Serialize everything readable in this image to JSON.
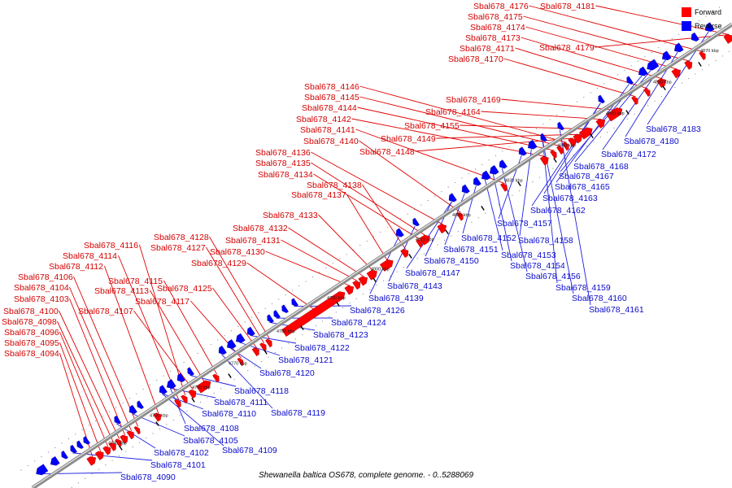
{
  "caption": "Shewanella baltica OS678, complete genome. - 0..5288069",
  "legend": {
    "forward_label": "Forward",
    "reverse_label": "Reverse",
    "forward_color": "#ff0000",
    "reverse_color": "#0000ff"
  },
  "colors": {
    "axis": "#8c8c8c",
    "forward_leader": "#e00000",
    "reverse_leader": "#2020e0"
  },
  "ticks": [
    "4740 kbp",
    "4750 kbp",
    "4760 kbp",
    "4770 kbp",
    "4780 kbp",
    "4790 kbp",
    "4800 kbp",
    "4810 kbp",
    "4820 kbp",
    "4830 kbp",
    "4840 kbp",
    "4850 kbp",
    "4860 kbp",
    "4870 kbp"
  ],
  "forward_genes": [
    "Sbal678_4094",
    "Sbal678_4095",
    "Sbal678_4096",
    "Sbal678_4098",
    "Sbal678_4100",
    "Sbal678_4103",
    "Sbal678_4104",
    "Sbal678_4106",
    "Sbal678_4112",
    "Sbal678_4114",
    "Sbal678_4116",
    "Sbal678_4107",
    "Sbal678_4113",
    "Sbal678_4115",
    "Sbal678_4117",
    "Sbal678_4125",
    "Sbal678_4127",
    "Sbal678_4128",
    "Sbal678_4129",
    "Sbal678_4130",
    "Sbal678_4131",
    "Sbal678_4132",
    "Sbal678_4133",
    "Sbal678_4137",
    "Sbal678_4138",
    "Sbal678_4134",
    "Sbal678_4135",
    "Sbal678_4136",
    "Sbal678_4140",
    "Sbal678_4141",
    "Sbal678_4142",
    "Sbal678_4144",
    "Sbal678_4145",
    "Sbal678_4146",
    "Sbal678_4148",
    "Sbal678_4149",
    "Sbal678_4155",
    "Sbal678_4164",
    "Sbal678_4169",
    "Sbal678_4170",
    "Sbal678_4171",
    "Sbal678_4173",
    "Sbal678_4174",
    "Sbal678_4175",
    "Sbal678_4176",
    "Sbal678_4179",
    "Sbal678_4181"
  ],
  "reverse_genes": [
    "Sbal678_4090",
    "Sbal678_4101",
    "Sbal678_4102",
    "Sbal678_4105",
    "Sbal678_4108",
    "Sbal678_4109",
    "Sbal678_4110",
    "Sbal678_4111",
    "Sbal678_4118",
    "Sbal678_4119",
    "Sbal678_4120",
    "Sbal678_4121",
    "Sbal678_4122",
    "Sbal678_4123",
    "Sbal678_4124",
    "Sbal678_4126",
    "Sbal678_4139",
    "Sbal678_4143",
    "Sbal678_4147",
    "Sbal678_4150",
    "Sbal678_4151",
    "Sbal678_4152",
    "Sbal678_4153",
    "Sbal678_4154",
    "Sbal678_4156",
    "Sbal678_4157",
    "Sbal678_4158",
    "Sbal678_4159",
    "Sbal678_4160",
    "Sbal678_4161",
    "Sbal678_4162",
    "Sbal678_4163",
    "Sbal678_4165",
    "Sbal678_4167",
    "Sbal678_4168",
    "Sbal678_4172",
    "Sbal678_4180",
    "Sbal678_4183"
  ]
}
